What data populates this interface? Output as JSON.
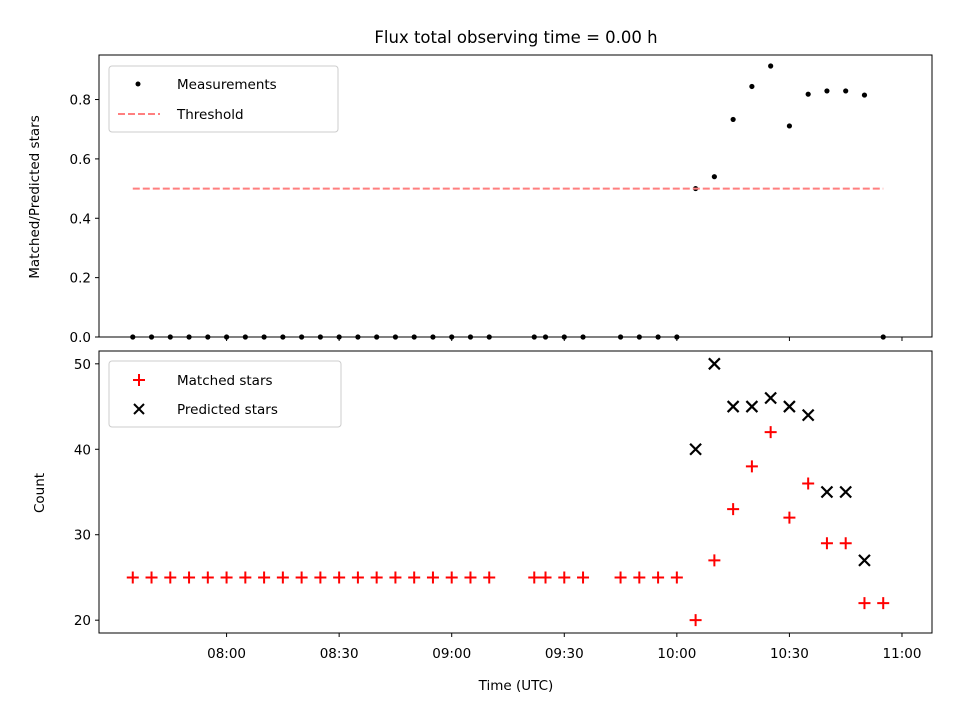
{
  "chart_data": [
    {
      "type": "scatter",
      "title": "Flux total observing time = 0.00 h",
      "xlabel": "",
      "ylabel": "Matched/Predicted stars",
      "ylim": [
        0.0,
        0.95
      ],
      "yticks": [
        0.0,
        0.2,
        0.4,
        0.6,
        0.8
      ],
      "ytick_labels": [
        "0.0",
        "0.2",
        "0.4",
        "0.6",
        "0.8"
      ],
      "legend_position": "top-left",
      "series": [
        {
          "name": "Measurements",
          "marker": "dot",
          "color": "#000000",
          "points": [
            [
              "07:35",
              0.0
            ],
            [
              "07:40",
              0.0
            ],
            [
              "07:45",
              0.0
            ],
            [
              "07:50",
              0.0
            ],
            [
              "07:55",
              0.0
            ],
            [
              "08:00",
              0.0
            ],
            [
              "08:05",
              0.0
            ],
            [
              "08:10",
              0.0
            ],
            [
              "08:15",
              0.0
            ],
            [
              "08:20",
              0.0
            ],
            [
              "08:25",
              0.0
            ],
            [
              "08:30",
              0.0
            ],
            [
              "08:35",
              0.0
            ],
            [
              "08:40",
              0.0
            ],
            [
              "08:45",
              0.0
            ],
            [
              "08:50",
              0.0
            ],
            [
              "08:55",
              0.0
            ],
            [
              "09:00",
              0.0
            ],
            [
              "09:05",
              0.0
            ],
            [
              "09:10",
              0.0
            ],
            [
              "09:22",
              0.0
            ],
            [
              "09:25",
              0.0
            ],
            [
              "09:30",
              0.0
            ],
            [
              "09:35",
              0.0
            ],
            [
              "09:45",
              0.0
            ],
            [
              "09:50",
              0.0
            ],
            [
              "09:55",
              0.0
            ],
            [
              "10:00",
              0.0
            ],
            [
              "10:05",
              0.5
            ],
            [
              "10:10",
              0.54
            ],
            [
              "10:15",
              0.733
            ],
            [
              "10:20",
              0.844
            ],
            [
              "10:25",
              0.913
            ],
            [
              "10:30",
              0.711
            ],
            [
              "10:35",
              0.818
            ],
            [
              "10:40",
              0.829
            ],
            [
              "10:45",
              0.829
            ],
            [
              "10:50",
              0.815
            ],
            [
              "10:55",
              0.0
            ]
          ]
        },
        {
          "name": "Threshold",
          "marker": "dashed-line",
          "color": "#ff7f7f",
          "points": [
            [
              "07:35",
              0.5
            ],
            [
              "10:55",
              0.5
            ]
          ]
        }
      ]
    },
    {
      "type": "scatter",
      "title": "",
      "xlabel": "Time (UTC)",
      "ylabel": "Count",
      "ylim": [
        18.5,
        51.5
      ],
      "yticks": [
        20,
        30,
        40,
        50
      ],
      "ytick_labels": [
        "20",
        "30",
        "40",
        "50"
      ],
      "xlim": [
        "07:26",
        "11:08"
      ],
      "xticks": [
        "08:00",
        "08:30",
        "09:00",
        "09:30",
        "10:00",
        "10:30",
        "11:00"
      ],
      "legend_position": "top-left",
      "series": [
        {
          "name": "Matched stars",
          "marker": "plus",
          "color": "#ff0000",
          "points": [
            [
              "07:35",
              25
            ],
            [
              "07:40",
              25
            ],
            [
              "07:45",
              25
            ],
            [
              "07:50",
              25
            ],
            [
              "07:55",
              25
            ],
            [
              "08:00",
              25
            ],
            [
              "08:05",
              25
            ],
            [
              "08:10",
              25
            ],
            [
              "08:15",
              25
            ],
            [
              "08:20",
              25
            ],
            [
              "08:25",
              25
            ],
            [
              "08:30",
              25
            ],
            [
              "08:35",
              25
            ],
            [
              "08:40",
              25
            ],
            [
              "08:45",
              25
            ],
            [
              "08:50",
              25
            ],
            [
              "08:55",
              25
            ],
            [
              "09:00",
              25
            ],
            [
              "09:05",
              25
            ],
            [
              "09:10",
              25
            ],
            [
              "09:22",
              25
            ],
            [
              "09:25",
              25
            ],
            [
              "09:30",
              25
            ],
            [
              "09:35",
              25
            ],
            [
              "09:45",
              25
            ],
            [
              "09:50",
              25
            ],
            [
              "09:55",
              25
            ],
            [
              "10:00",
              25
            ],
            [
              "10:05",
              20
            ],
            [
              "10:10",
              27
            ],
            [
              "10:15",
              33
            ],
            [
              "10:20",
              38
            ],
            [
              "10:25",
              42
            ],
            [
              "10:30",
              32
            ],
            [
              "10:35",
              36
            ],
            [
              "10:40",
              29
            ],
            [
              "10:45",
              29
            ],
            [
              "10:50",
              22
            ],
            [
              "10:55",
              22
            ]
          ]
        },
        {
          "name": "Predicted stars",
          "marker": "x",
          "color": "#000000",
          "points": [
            [
              "10:05",
              40
            ],
            [
              "10:10",
              50
            ],
            [
              "10:15",
              45
            ],
            [
              "10:20",
              45
            ],
            [
              "10:25",
              46
            ],
            [
              "10:30",
              45
            ],
            [
              "10:35",
              44
            ],
            [
              "10:40",
              35
            ],
            [
              "10:45",
              35
            ],
            [
              "10:50",
              27
            ]
          ]
        }
      ]
    }
  ]
}
